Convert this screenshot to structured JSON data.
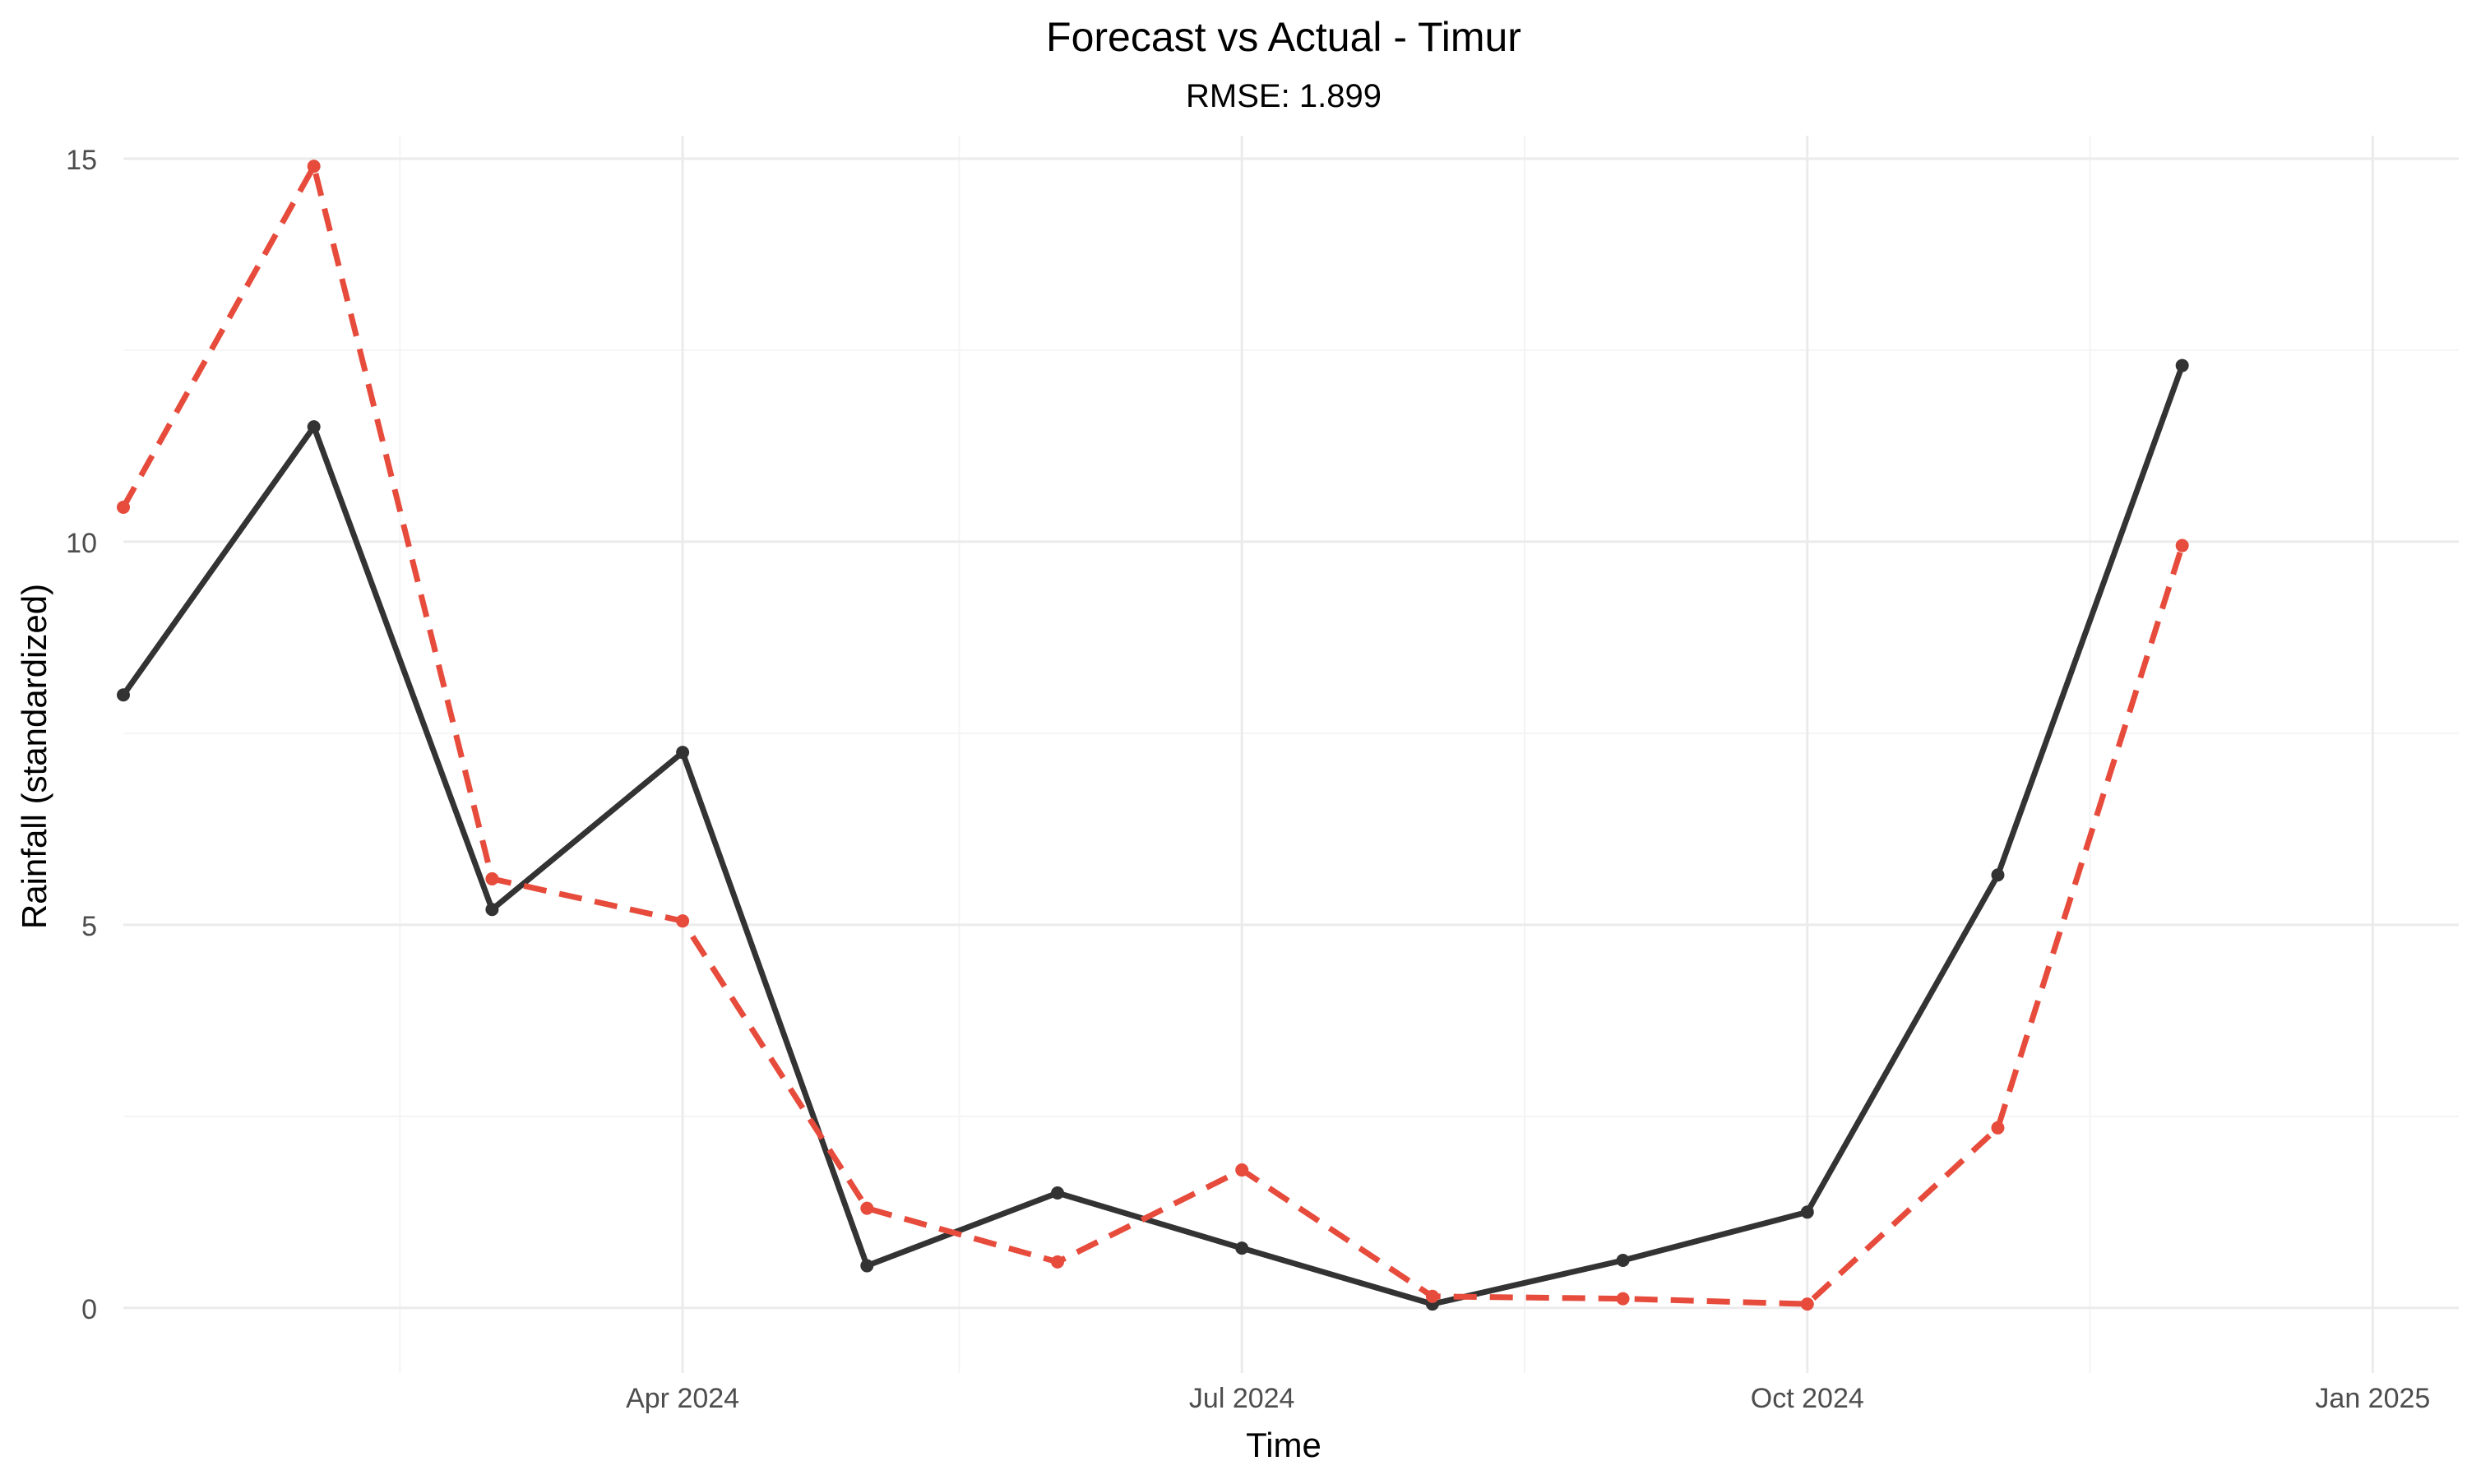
{
  "chart_data": {
    "type": "line",
    "title": "Forecast vs Actual - Timur",
    "subtitle": "RMSE: 1.899",
    "xlabel": "Time",
    "ylabel": "Rainfall (standardized)",
    "x_axis": {
      "type": "date",
      "range": [
        "2024-01-01",
        "2025-01-15"
      ],
      "ticks": [
        {
          "date": "2024-04-01",
          "label": "Apr 2024"
        },
        {
          "date": "2024-07-01",
          "label": "Jul 2024"
        },
        {
          "date": "2024-10-01",
          "label": "Oct 2024"
        },
        {
          "date": "2025-01-01",
          "label": "Jan 2025"
        }
      ],
      "minor_ticks": [
        "2024-02-15",
        "2024-05-16",
        "2024-08-16",
        "2024-11-16"
      ]
    },
    "y_axis": {
      "range": [
        -0.85,
        15.3
      ],
      "ticks": [
        0,
        5,
        10,
        15
      ],
      "minor_ticks": [
        2.5,
        7.5,
        12.5
      ]
    },
    "grid": true,
    "x": [
      "2024-01-01",
      "2024-02-01",
      "2024-03-01",
      "2024-04-01",
      "2024-05-01",
      "2024-06-01",
      "2024-07-01",
      "2024-08-01",
      "2024-09-01",
      "2024-10-01",
      "2024-11-01",
      "2024-12-01",
      "2025-01-01"
    ],
    "series": [
      {
        "values": [
          8.0,
          11.5,
          5.2,
          7.25,
          0.55,
          1.5,
          0.78,
          0.05,
          0.62,
          1.25,
          5.65,
          12.3,
          null
        ],
        "color": "#333333",
        "style": "solid"
      },
      {
        "values": [
          10.45,
          14.9,
          5.6,
          5.05,
          1.3,
          0.6,
          1.8,
          0.15,
          0.12,
          0.05,
          2.35,
          9.95,
          null
        ],
        "color": "#E64B3C",
        "style": "dashed"
      }
    ]
  }
}
